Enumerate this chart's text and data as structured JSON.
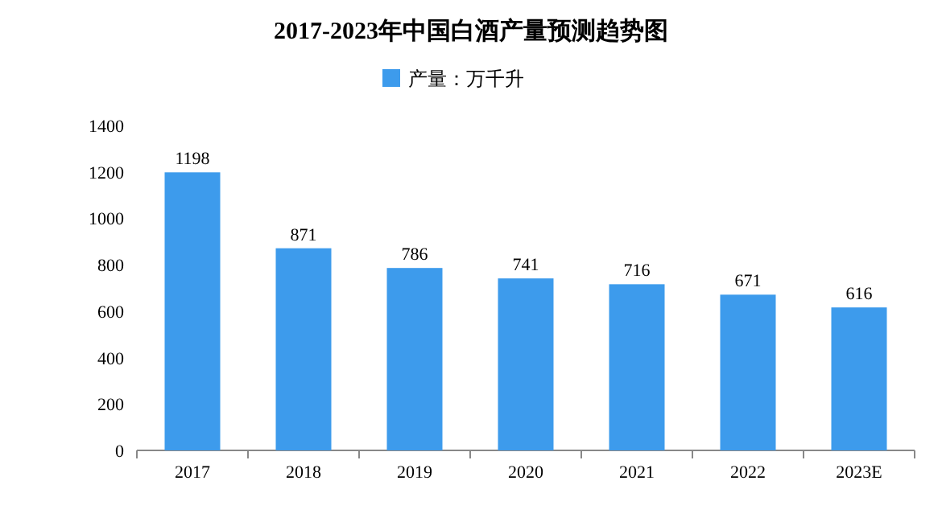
{
  "chart_data": {
    "type": "bar",
    "title": "2017-2023年中国白酒产量预测趋势图",
    "categories": [
      "2017",
      "2018",
      "2019",
      "2020",
      "2021",
      "2022",
      "2023E"
    ],
    "series": [
      {
        "name": "产量：万千升",
        "color": "#3d9bec",
        "values": [
          1198,
          871,
          786,
          741,
          716,
          671,
          616
        ]
      }
    ],
    "ylim": [
      0,
      1400
    ],
    "yticks": [
      0,
      200,
      400,
      600,
      800,
      1000,
      1200,
      1400
    ],
    "data_labels": true,
    "legend": "top",
    "grid": false
  }
}
